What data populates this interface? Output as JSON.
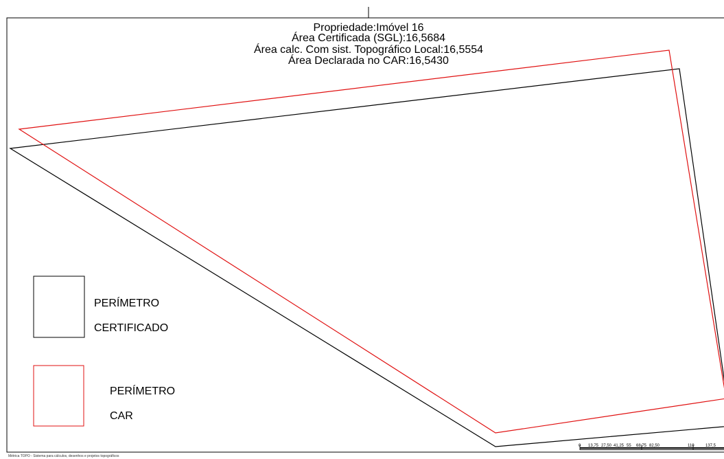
{
  "title": {
    "property": "Propriedade:Imóvel 16",
    "certified_area": "Área Certificada (SGL):16,5684",
    "local_topo_area": "Área calc. Com sist. Topográfico Local:16,5554",
    "declared_car_area": "Área Declarada no CAR:16,5430"
  },
  "legend": {
    "certified": {
      "line1": "PERÍMETRO",
      "line2": "CERTIFICADO",
      "color": "#000000"
    },
    "car": {
      "line1": "PERÍMETRO",
      "line2": "CAR",
      "color": "#e01010"
    }
  },
  "scale_bar": {
    "labels": [
      "0",
      "13,75",
      "27,50",
      "41,25",
      "55",
      "68,75",
      "82,50",
      "110",
      "137,5"
    ]
  },
  "footer": "Métrica TOPO - Sistema para cálculos, desenhos e projetos topográficos"
}
